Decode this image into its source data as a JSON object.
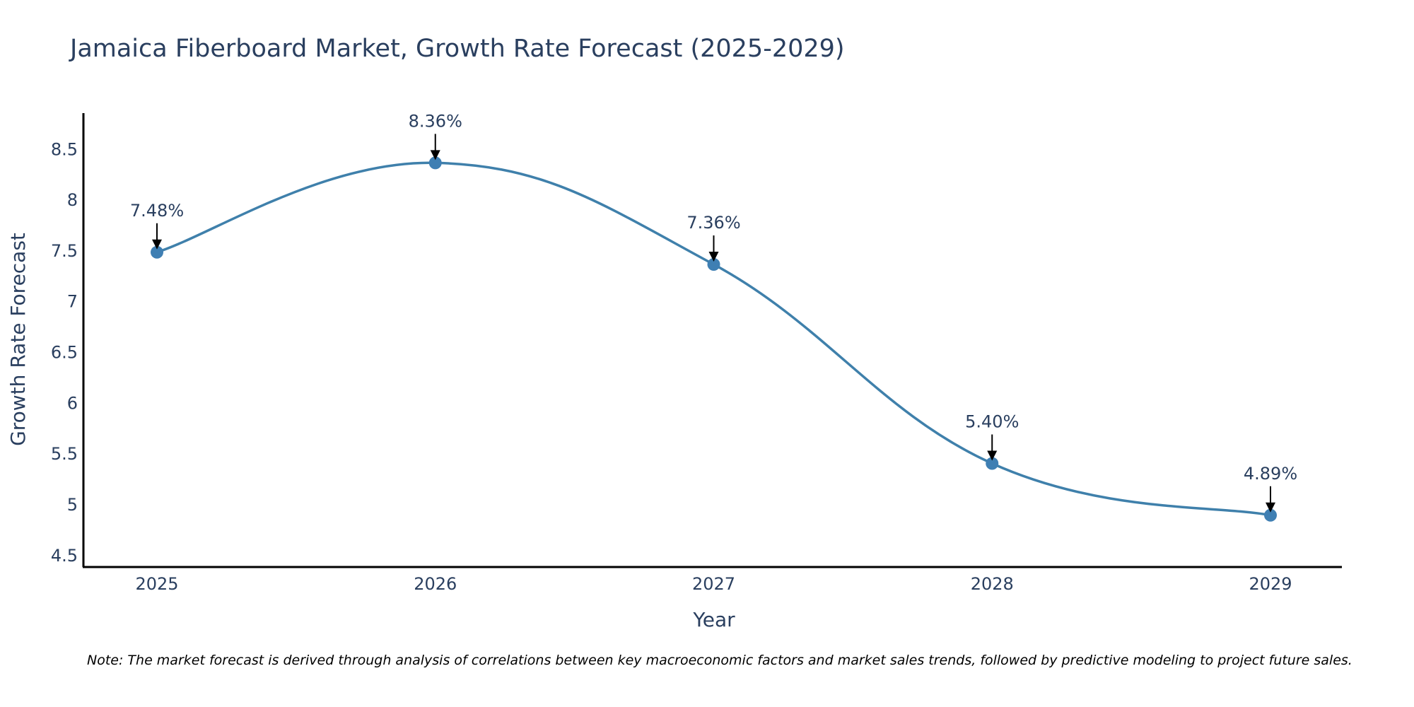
{
  "chart_data": {
    "type": "line",
    "title": "Jamaica Fiberboard Market, Growth Rate Forecast (2025-2029)",
    "xlabel": "Year",
    "ylabel": "Growth Rate Forecast",
    "categories": [
      "2025",
      "2026",
      "2027",
      "2028",
      "2029"
    ],
    "values": [
      7.48,
      8.36,
      7.36,
      5.4,
      4.89
    ],
    "data_labels": [
      "7.48%",
      "8.36%",
      "7.36%",
      "5.40%",
      "4.89%"
    ],
    "yticks": [
      "4.5",
      "5",
      "5.5",
      "6",
      "6.5",
      "7",
      "7.5",
      "8",
      "8.5"
    ],
    "ytick_values": [
      4.5,
      5,
      5.5,
      6,
      6.5,
      7,
      7.5,
      8,
      8.5
    ],
    "ylim": [
      4.38,
      8.85
    ],
    "grid": false,
    "line_shape": "spline",
    "note": "Note: The market forecast is derived through analysis of correlations between key macroeconomic factors and market sales trends, followed by predictive modeling to project future sales."
  },
  "colors": {
    "line": "#3f80ab",
    "marker": "#3f7fb3",
    "text": "#2a3f5f",
    "axis": "#000000"
  }
}
